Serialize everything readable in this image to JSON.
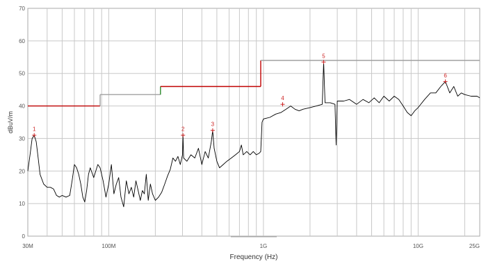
{
  "chart_data": {
    "type": "line",
    "xlabel": "Frequency (Hz)",
    "ylabel": "dBuV/m",
    "xscale": "log",
    "xlim": [
      30000000,
      25000000000
    ],
    "ylim": [
      0,
      70
    ],
    "grid": true,
    "x_tick_labels": [
      {
        "x": 30000000,
        "label": "30M"
      },
      {
        "x": 100000000,
        "label": "100M"
      },
      {
        "x": 1000000000,
        "label": "1G"
      },
      {
        "x": 10000000000,
        "label": "10G"
      },
      {
        "x": 25000000000,
        "label": "25G"
      }
    ],
    "y_ticks": [
      0,
      10,
      20,
      30,
      40,
      50,
      60,
      70
    ],
    "colors": {
      "limit_red": "#c00000",
      "limit_green": "#2a8a2a",
      "limit_gray": "#a0a0a0",
      "trace": "#000000",
      "marker": "#cc2222",
      "grid": "#c8c8c8",
      "axis_text": "#555555"
    },
    "limit_segments": [
      {
        "x": [
          30000000,
          88000000
        ],
        "y": 40,
        "color": "red"
      },
      {
        "x": [
          88000000,
          88000000
        ],
        "y_range": [
          40,
          43.5
        ],
        "color": "gray"
      },
      {
        "x": [
          88000000,
          216000000
        ],
        "y": 43.5,
        "color": "gray"
      },
      {
        "x": [
          216000000,
          216000000
        ],
        "y_range": [
          43.5,
          46
        ],
        "color": "green"
      },
      {
        "x": [
          216000000,
          960000000
        ],
        "y": 46,
        "color": "red"
      },
      {
        "x": [
          960000000,
          960000000
        ],
        "y_range": [
          46,
          54
        ],
        "color": "red"
      },
      {
        "x": [
          960000000,
          25000000000
        ],
        "y": 54,
        "color": "gray"
      }
    ],
    "series": [
      {
        "points": [
          [
            30000000,
            20
          ],
          [
            31000000,
            25
          ],
          [
            32000000,
            30
          ],
          [
            33000000,
            31
          ],
          [
            34000000,
            29
          ],
          [
            35000000,
            24
          ],
          [
            36000000,
            19
          ],
          [
            38000000,
            16
          ],
          [
            40000000,
            15
          ],
          [
            42000000,
            15
          ],
          [
            44000000,
            14.5
          ],
          [
            46000000,
            12.5
          ],
          [
            48000000,
            12
          ],
          [
            50000000,
            12.5
          ],
          [
            53000000,
            12
          ],
          [
            56000000,
            12.5
          ],
          [
            58000000,
            17
          ],
          [
            60000000,
            22
          ],
          [
            62000000,
            21
          ],
          [
            64000000,
            19
          ],
          [
            66000000,
            16
          ],
          [
            68000000,
            12
          ],
          [
            70000000,
            10.5
          ],
          [
            72000000,
            14
          ],
          [
            74000000,
            19
          ],
          [
            76000000,
            21
          ],
          [
            80000000,
            18
          ],
          [
            85000000,
            22
          ],
          [
            88000000,
            21
          ],
          [
            92000000,
            17
          ],
          [
            96000000,
            12
          ],
          [
            100000000,
            16
          ],
          [
            104000000,
            22
          ],
          [
            108000000,
            13
          ],
          [
            112000000,
            16
          ],
          [
            116000000,
            18
          ],
          [
            120000000,
            12
          ],
          [
            125000000,
            9
          ],
          [
            130000000,
            17
          ],
          [
            135000000,
            13
          ],
          [
            140000000,
            15
          ],
          [
            145000000,
            12
          ],
          [
            150000000,
            17
          ],
          [
            155000000,
            14
          ],
          [
            160000000,
            11
          ],
          [
            165000000,
            14
          ],
          [
            170000000,
            13
          ],
          [
            175000000,
            19
          ],
          [
            180000000,
            11
          ],
          [
            186000000,
            16
          ],
          [
            192000000,
            13
          ],
          [
            200000000,
            11
          ],
          [
            210000000,
            12
          ],
          [
            220000000,
            13.5
          ],
          [
            230000000,
            16
          ],
          [
            240000000,
            18.5
          ],
          [
            250000000,
            20.5
          ],
          [
            260000000,
            24
          ],
          [
            270000000,
            23
          ],
          [
            280000000,
            24.5
          ],
          [
            290000000,
            22
          ],
          [
            300000000,
            25
          ],
          [
            302000000,
            31
          ],
          [
            305000000,
            24
          ],
          [
            320000000,
            23
          ],
          [
            340000000,
            25
          ],
          [
            360000000,
            24
          ],
          [
            380000000,
            27
          ],
          [
            400000000,
            22
          ],
          [
            420000000,
            26
          ],
          [
            440000000,
            24
          ],
          [
            460000000,
            29
          ],
          [
            470000000,
            32.5
          ],
          [
            480000000,
            27
          ],
          [
            500000000,
            23
          ],
          [
            520000000,
            21
          ],
          [
            550000000,
            22
          ],
          [
            580000000,
            23
          ],
          [
            620000000,
            24
          ],
          [
            660000000,
            25
          ],
          [
            700000000,
            26
          ],
          [
            720000000,
            28
          ],
          [
            740000000,
            25
          ],
          [
            780000000,
            26
          ],
          [
            820000000,
            25
          ],
          [
            860000000,
            26
          ],
          [
            900000000,
            25
          ],
          [
            940000000,
            25.5
          ],
          [
            960000000,
            26
          ],
          [
            980000000,
            35
          ],
          [
            1000000000,
            36
          ],
          [
            1100000000,
            36.5
          ],
          [
            1200000000,
            37.5
          ],
          [
            1300000000,
            38
          ],
          [
            1400000000,
            39
          ],
          [
            1500000000,
            40
          ],
          [
            1600000000,
            39
          ],
          [
            1700000000,
            38.5
          ],
          [
            1800000000,
            39
          ],
          [
            2000000000,
            39.5
          ],
          [
            2200000000,
            40
          ],
          [
            2400000000,
            40.5
          ],
          [
            2450000000,
            53.5
          ],
          [
            2500000000,
            41
          ],
          [
            2700000000,
            41
          ],
          [
            2900000000,
            40.5
          ],
          [
            2950000000,
            28
          ],
          [
            3000000000,
            41.5
          ],
          [
            3300000000,
            41.5
          ],
          [
            3600000000,
            42
          ],
          [
            4000000000,
            40.5
          ],
          [
            4400000000,
            42
          ],
          [
            4800000000,
            41
          ],
          [
            5200000000,
            42.5
          ],
          [
            5600000000,
            41
          ],
          [
            6000000000,
            43
          ],
          [
            6500000000,
            41.5
          ],
          [
            7000000000,
            43
          ],
          [
            7500000000,
            42
          ],
          [
            8000000000,
            40
          ],
          [
            8500000000,
            38
          ],
          [
            9000000000,
            37
          ],
          [
            9500000000,
            38.5
          ],
          [
            10000000000,
            39.5
          ],
          [
            11000000000,
            42
          ],
          [
            12000000000,
            44
          ],
          [
            13000000000,
            44
          ],
          [
            14000000000,
            46
          ],
          [
            15000000000,
            47.5
          ],
          [
            16000000000,
            44
          ],
          [
            17000000000,
            46
          ],
          [
            18000000000,
            43
          ],
          [
            19000000000,
            44
          ],
          [
            20000000000,
            43.5
          ],
          [
            22000000000,
            43
          ],
          [
            24000000000,
            43
          ],
          [
            25000000000,
            42.5
          ]
        ]
      }
    ],
    "markers": [
      {
        "label": "1",
        "x": 33000000,
        "y": 31
      },
      {
        "label": "2",
        "x": 302000000,
        "y": 31
      },
      {
        "label": "3",
        "x": 470000000,
        "y": 32.5
      },
      {
        "label": "4",
        "x": 1330000000,
        "y": 40.5
      },
      {
        "label": "5",
        "x": 2450000000,
        "y": 53.5
      },
      {
        "label": "6",
        "x": 15000000000,
        "y": 47.5
      }
    ]
  }
}
